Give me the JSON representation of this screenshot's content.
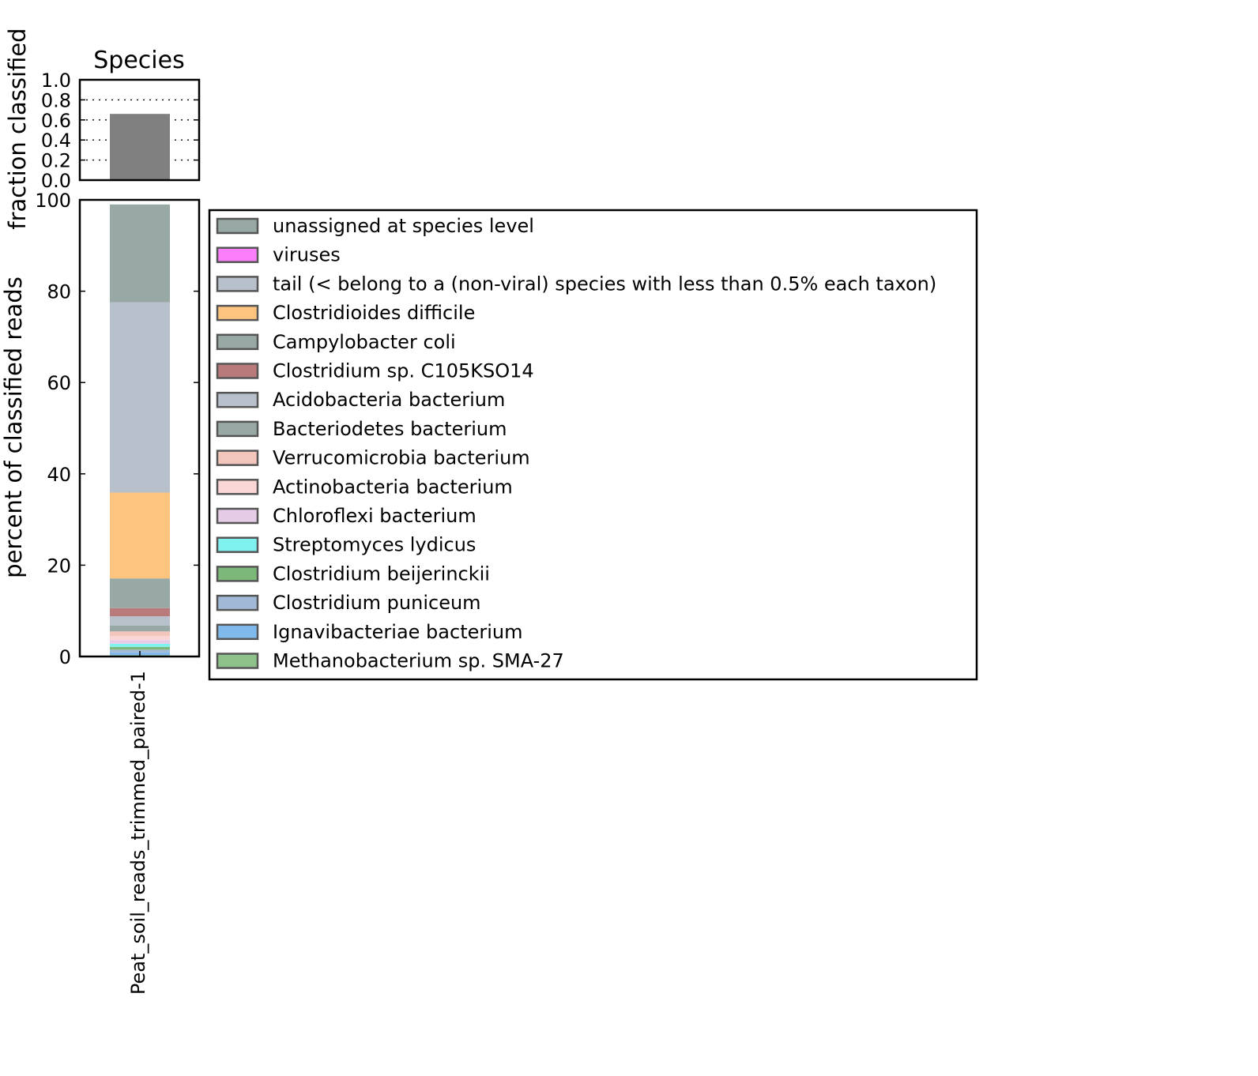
{
  "chart_data": [
    {
      "type": "bar",
      "title": "Species",
      "ylabel": "fraction classified",
      "xlabel": "",
      "ylim": [
        0,
        1.0
      ],
      "yticks": [
        "0.0",
        "0.2",
        "0.4",
        "0.6",
        "0.8",
        "1.0"
      ],
      "grid": "y dotted",
      "categories": [
        "Peat_soil_reads_trimmed_paired-1"
      ],
      "values": [
        0.66
      ],
      "bar_color": "#808080"
    },
    {
      "type": "bar",
      "stacked": true,
      "ylabel": "percent of classified reads",
      "xlabel": "",
      "ylim": [
        0,
        100
      ],
      "yticks": [
        "0",
        "20",
        "40",
        "60",
        "80",
        "100"
      ],
      "categories": [
        "Peat_soil_reads_trimmed_paired-1"
      ],
      "legend_position": "right",
      "series": [
        {
          "name": "Methanobacterium sp. SMA-27",
          "values": [
            0.3
          ],
          "color": "#8fc18a"
        },
        {
          "name": "Ignavibacteriae bacterium",
          "values": [
            0.6
          ],
          "color": "#80b9ec"
        },
        {
          "name": "Clostridium puniceum",
          "values": [
            0.6
          ],
          "color": "#a1b9d6"
        },
        {
          "name": "Clostridium beijerinckii",
          "values": [
            0.6
          ],
          "color": "#7cb87a"
        },
        {
          "name": "Streptomyces lydicus",
          "values": [
            0.7
          ],
          "color": "#7ff2f0"
        },
        {
          "name": "Chloroflexi bacterium",
          "values": [
            0.8
          ],
          "color": "#e6cbe6"
        },
        {
          "name": "Actinobacteria bacterium",
          "values": [
            0.9
          ],
          "color": "#fbd6d6"
        },
        {
          "name": "Verrucomicrobia bacterium",
          "values": [
            1.0
          ],
          "color": "#f2c6ba"
        },
        {
          "name": "Bacteriodetes bacterium",
          "values": [
            1.3
          ],
          "color": "#98a8a5"
        },
        {
          "name": "Acidobacteria bacterium",
          "values": [
            2.0
          ],
          "color": "#b7c0cb"
        },
        {
          "name": "Clostridium sp. C105KSO14",
          "values": [
            1.8
          ],
          "color": "#b87a7a"
        },
        {
          "name": "Campylobacter coli",
          "values": [
            6.5
          ],
          "color": "#98a8a5"
        },
        {
          "name": "Clostridioides difficile",
          "values": [
            18.8
          ],
          "color": "#fdc47f"
        },
        {
          "name": "tail (< belong to a (non-viral) species with less than 0.5% each taxon)",
          "values": [
            41.7
          ],
          "color": "#b7c0cb"
        },
        {
          "name": "viruses",
          "values": [
            0.0
          ],
          "color": "#fb7ffa"
        },
        {
          "name": "unassigned at species level",
          "values": [
            21.4
          ],
          "color": "#98a8a5"
        }
      ],
      "legend_order": [
        "unassigned at species level",
        "viruses",
        "tail (< belong to a (non-viral) species with less than 0.5% each taxon)",
        "Clostridioides difficile",
        "Campylobacter coli",
        "Clostridium sp. C105KSO14",
        "Acidobacteria bacterium",
        "Bacteriodetes bacterium",
        "Verrucomicrobia bacterium",
        "Actinobacteria bacterium",
        "Chloroflexi bacterium",
        "Streptomyces lydicus",
        "Clostridium beijerinckii",
        "Clostridium puniceum",
        "Ignavibacteriae bacterium",
        "Methanobacterium sp. SMA-27"
      ]
    }
  ]
}
